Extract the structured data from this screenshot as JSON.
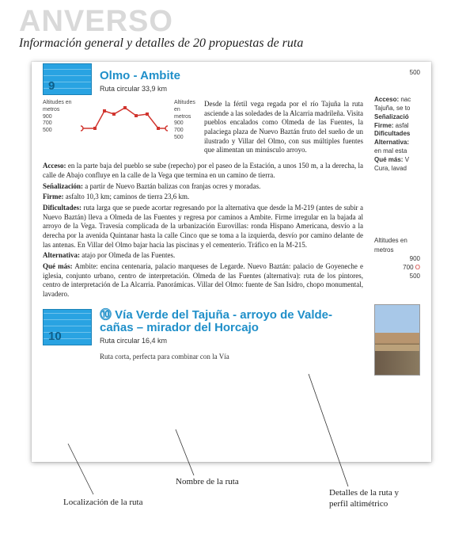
{
  "watermark": "ANVERSO",
  "subtitle": "Información general y detalles de 20 propuestas de ruta",
  "route9": {
    "number": "9",
    "title": "Olmo - Ambite",
    "sub": "Ruta circular  33,9 km",
    "intro": "Desde la fértil vega regada por el río Tajuña la ruta asciende a las soledades de la Alcarria madrileña. Visita pueblos encalados como Olmeda de las Fuentes, la palaciega plaza de Nuevo Baztán fruto del sueño de un ilustrado y Villar del Olmo, con sus múltiples fuentes que alimentan un minúsculo arroyo."
  },
  "profile": {
    "left_label": "Altitudes en metros",
    "ticks_left": [
      "900",
      "700",
      "500"
    ],
    "ticks_right": [
      "900",
      "700",
      "500"
    ],
    "right_label": "Altitudes en metros",
    "points": [
      [
        0,
        36
      ],
      [
        18,
        36
      ],
      [
        30,
        14
      ],
      [
        42,
        18
      ],
      [
        56,
        10
      ],
      [
        70,
        20
      ],
      [
        84,
        18
      ],
      [
        98,
        36
      ],
      [
        110,
        36
      ]
    ],
    "line_color": "#d1352f",
    "marker_color": "#d1352f"
  },
  "sections": {
    "acceso_label": "Acceso:",
    "acceso": " en la parte baja del pueblo se sube (repecho) por el paseo de la Estación, a unos 150 m, a la derecha, la calle de Abajo confluye en la calle de la Vega que termina en un camino de tierra.",
    "senal_label": "Señalización:",
    "senal": " a partir de Nuevo Baztán balizas con franjas ocres y moradas.",
    "firme_label": "Firme:",
    "firme": " asfalto 10,3 km; caminos de tierra 23,6 km.",
    "dific_label": "Dificultades:",
    "dific": " ruta larga que se puede acortar regresando por la alternativa que desde la M-219 (antes de subir a Nuevo Baztán) lleva a Olmeda de las Fuentes y regresa por caminos a Ambite. Firme irregular en la bajada al arroyo de la Vega. Travesía complicada de la urbanización Eurovillas: ronda Hispano Americana, desvío a la derecha por la avenida Quintanar hasta la calle Cinco que se toma a la izquierda, desvío por camino delante de las antenas. En Villar del Olmo bajar hacia las piscinas y el cementerio. Tráfico en la M-215.",
    "alt_label": "Alternativa:",
    "alt": " atajo por Olmeda de las Fuentes.",
    "que_label": "Qué más:",
    "que": " Ambite: encina centenaria, palacio marqueses de Legarde. Nuevo Baztán: palacio de Goyeneche e iglesia, conjunto urbano, centro de interpretación. Olmeda de las Fuentes (alternativa): ruta de los pintores, centro de interpretación de La Alcarria. Panorámicas. Villar del Olmo: fuente de San Isidro, chopo monumental, lavadero."
  },
  "route10": {
    "number": "10",
    "title1": "Vía Verde del Tajuña - arroyo de Valde-",
    "title2": "cañas – mirador del Horcajo",
    "sub": "Ruta circular  16,4 km",
    "teaser": "Ruta corta, perfecta para combinar con la Vía"
  },
  "side": {
    "top_val": "500",
    "acceso_label": "Acceso:",
    "acceso_frag": " nac",
    "tajuna": "Tajuña, se to",
    "senal": "Señalizació",
    "firme_label": "Firme:",
    "firme_frag": " asfal",
    "dific": "Dificultades",
    "alt_label": "Alternativa:",
    "alt_frag": "en mal esta",
    "que_label": "Qué más:",
    "que_frag": " V",
    "cura": "Cura, lavad",
    "alt_lbl": "Altitudes en metros",
    "t900": "900",
    "t700": "700",
    "t500": "500",
    "mark": "O"
  },
  "callouts": {
    "loc": "Localización de la ruta",
    "nombre": "Nombre de la ruta",
    "detalles": "Detalles de la ruta y perfil altimétrico"
  },
  "bullet_prefix": "⓾ "
}
